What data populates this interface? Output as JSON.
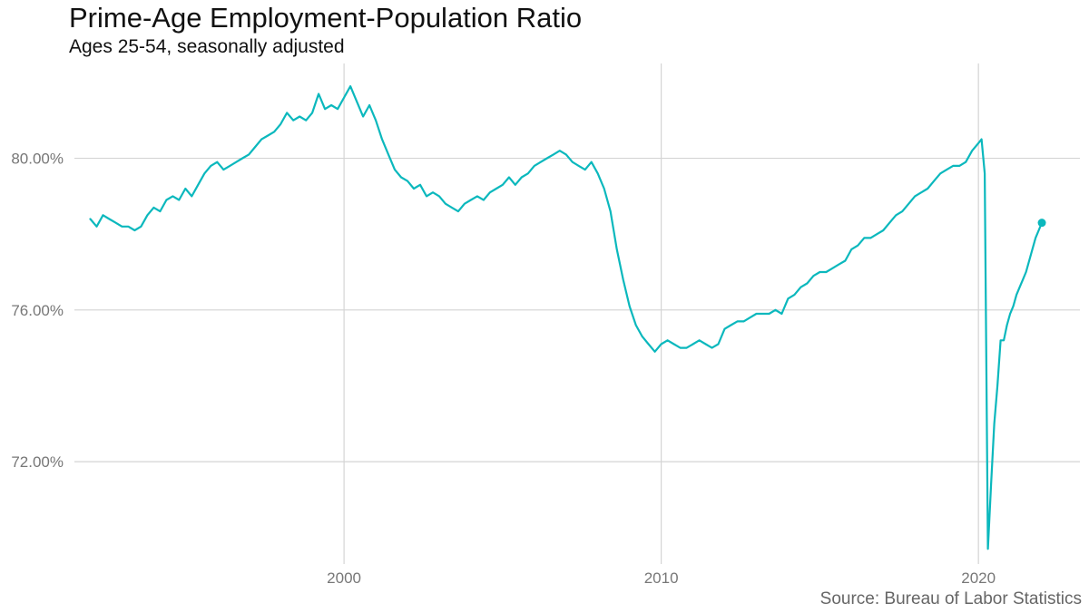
{
  "colors": {
    "series": "#0bb8bd",
    "grid": "#d4d4d4",
    "axis_text": "#777777"
  },
  "chart_data": {
    "type": "line",
    "title": "Prime-Age Employment-Population Ratio",
    "subtitle": "Ages 25-54, seasonally adjusted",
    "source": "Source: Bureau of Labor Statistics",
    "xlabel": "",
    "ylabel": "",
    "x_ticks": [
      2000,
      2010,
      2020
    ],
    "y_ticks": [
      72,
      76,
      80
    ],
    "y_tick_labels": [
      "72.00%",
      "76.00%",
      "80.00%"
    ],
    "xlim": [
      1991.5,
      2023.2
    ],
    "ylim": [
      69.3,
      82.5
    ],
    "grid": true,
    "legend": "none",
    "end_marker": true,
    "series": [
      {
        "values": [
          [
            1992.0,
            78.4
          ],
          [
            1992.2,
            78.2
          ],
          [
            1992.4,
            78.5
          ],
          [
            1992.6,
            78.4
          ],
          [
            1992.8,
            78.3
          ],
          [
            1993.0,
            78.2
          ],
          [
            1993.2,
            78.2
          ],
          [
            1993.4,
            78.1
          ],
          [
            1993.6,
            78.2
          ],
          [
            1993.8,
            78.5
          ],
          [
            1994.0,
            78.7
          ],
          [
            1994.2,
            78.6
          ],
          [
            1994.4,
            78.9
          ],
          [
            1994.6,
            79.0
          ],
          [
            1994.8,
            78.9
          ],
          [
            1995.0,
            79.2
          ],
          [
            1995.2,
            79.0
          ],
          [
            1995.4,
            79.3
          ],
          [
            1995.6,
            79.6
          ],
          [
            1995.8,
            79.8
          ],
          [
            1996.0,
            79.9
          ],
          [
            1996.2,
            79.7
          ],
          [
            1996.4,
            79.8
          ],
          [
            1996.6,
            79.9
          ],
          [
            1996.8,
            80.0
          ],
          [
            1997.0,
            80.1
          ],
          [
            1997.2,
            80.3
          ],
          [
            1997.4,
            80.5
          ],
          [
            1997.6,
            80.6
          ],
          [
            1997.8,
            80.7
          ],
          [
            1998.0,
            80.9
          ],
          [
            1998.2,
            81.2
          ],
          [
            1998.4,
            81.0
          ],
          [
            1998.6,
            81.1
          ],
          [
            1998.8,
            81.0
          ],
          [
            1999.0,
            81.2
          ],
          [
            1999.2,
            81.7
          ],
          [
            1999.4,
            81.3
          ],
          [
            1999.6,
            81.4
          ],
          [
            1999.8,
            81.3
          ],
          [
            2000.0,
            81.6
          ],
          [
            2000.2,
            81.9
          ],
          [
            2000.4,
            81.5
          ],
          [
            2000.6,
            81.1
          ],
          [
            2000.8,
            81.4
          ],
          [
            2001.0,
            81.0
          ],
          [
            2001.2,
            80.5
          ],
          [
            2001.4,
            80.1
          ],
          [
            2001.6,
            79.7
          ],
          [
            2001.8,
            79.5
          ],
          [
            2002.0,
            79.4
          ],
          [
            2002.2,
            79.2
          ],
          [
            2002.4,
            79.3
          ],
          [
            2002.6,
            79.0
          ],
          [
            2002.8,
            79.1
          ],
          [
            2003.0,
            79.0
          ],
          [
            2003.2,
            78.8
          ],
          [
            2003.4,
            78.7
          ],
          [
            2003.6,
            78.6
          ],
          [
            2003.8,
            78.8
          ],
          [
            2004.0,
            78.9
          ],
          [
            2004.2,
            79.0
          ],
          [
            2004.4,
            78.9
          ],
          [
            2004.6,
            79.1
          ],
          [
            2004.8,
            79.2
          ],
          [
            2005.0,
            79.3
          ],
          [
            2005.2,
            79.5
          ],
          [
            2005.4,
            79.3
          ],
          [
            2005.6,
            79.5
          ],
          [
            2005.8,
            79.6
          ],
          [
            2006.0,
            79.8
          ],
          [
            2006.2,
            79.9
          ],
          [
            2006.4,
            80.0
          ],
          [
            2006.6,
            80.1
          ],
          [
            2006.8,
            80.2
          ],
          [
            2007.0,
            80.1
          ],
          [
            2007.2,
            79.9
          ],
          [
            2007.4,
            79.8
          ],
          [
            2007.6,
            79.7
          ],
          [
            2007.8,
            79.9
          ],
          [
            2008.0,
            79.6
          ],
          [
            2008.2,
            79.2
          ],
          [
            2008.4,
            78.6
          ],
          [
            2008.6,
            77.6
          ],
          [
            2008.8,
            76.8
          ],
          [
            2009.0,
            76.1
          ],
          [
            2009.2,
            75.6
          ],
          [
            2009.4,
            75.3
          ],
          [
            2009.6,
            75.1
          ],
          [
            2009.8,
            74.9
          ],
          [
            2010.0,
            75.1
          ],
          [
            2010.2,
            75.2
          ],
          [
            2010.4,
            75.1
          ],
          [
            2010.6,
            75.0
          ],
          [
            2010.8,
            75.0
          ],
          [
            2011.0,
            75.1
          ],
          [
            2011.2,
            75.2
          ],
          [
            2011.4,
            75.1
          ],
          [
            2011.6,
            75.0
          ],
          [
            2011.8,
            75.1
          ],
          [
            2012.0,
            75.5
          ],
          [
            2012.2,
            75.6
          ],
          [
            2012.4,
            75.7
          ],
          [
            2012.6,
            75.7
          ],
          [
            2012.8,
            75.8
          ],
          [
            2013.0,
            75.9
          ],
          [
            2013.2,
            75.9
          ],
          [
            2013.4,
            75.9
          ],
          [
            2013.6,
            76.0
          ],
          [
            2013.8,
            75.9
          ],
          [
            2014.0,
            76.3
          ],
          [
            2014.2,
            76.4
          ],
          [
            2014.4,
            76.6
          ],
          [
            2014.6,
            76.7
          ],
          [
            2014.8,
            76.9
          ],
          [
            2015.0,
            77.0
          ],
          [
            2015.2,
            77.0
          ],
          [
            2015.4,
            77.1
          ],
          [
            2015.6,
            77.2
          ],
          [
            2015.8,
            77.3
          ],
          [
            2016.0,
            77.6
          ],
          [
            2016.2,
            77.7
          ],
          [
            2016.4,
            77.9
          ],
          [
            2016.6,
            77.9
          ],
          [
            2016.8,
            78.0
          ],
          [
            2017.0,
            78.1
          ],
          [
            2017.2,
            78.3
          ],
          [
            2017.4,
            78.5
          ],
          [
            2017.6,
            78.6
          ],
          [
            2017.8,
            78.8
          ],
          [
            2018.0,
            79.0
          ],
          [
            2018.2,
            79.1
          ],
          [
            2018.4,
            79.2
          ],
          [
            2018.6,
            79.4
          ],
          [
            2018.8,
            79.6
          ],
          [
            2019.0,
            79.7
          ],
          [
            2019.2,
            79.8
          ],
          [
            2019.4,
            79.8
          ],
          [
            2019.6,
            79.9
          ],
          [
            2019.8,
            80.2
          ],
          [
            2020.0,
            80.4
          ],
          [
            2020.1,
            80.5
          ],
          [
            2020.2,
            79.6
          ],
          [
            2020.3,
            69.7
          ],
          [
            2020.4,
            71.4
          ],
          [
            2020.5,
            73.0
          ],
          [
            2020.6,
            74.0
          ],
          [
            2020.7,
            75.2
          ],
          [
            2020.8,
            75.2
          ],
          [
            2020.9,
            75.6
          ],
          [
            2021.0,
            75.9
          ],
          [
            2021.1,
            76.1
          ],
          [
            2021.2,
            76.4
          ],
          [
            2021.3,
            76.6
          ],
          [
            2021.4,
            76.8
          ],
          [
            2021.5,
            77.0
          ],
          [
            2021.6,
            77.3
          ],
          [
            2021.7,
            77.6
          ],
          [
            2021.8,
            77.9
          ],
          [
            2021.9,
            78.1
          ],
          [
            2022.0,
            78.3
          ]
        ]
      }
    ]
  }
}
